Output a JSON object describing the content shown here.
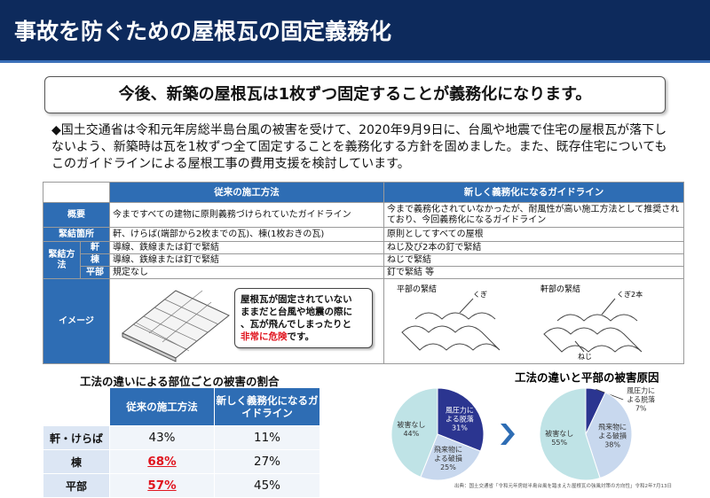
{
  "header": {
    "title": "事故を防ぐための屋根瓦の固定義務化"
  },
  "lead": "今後、新築の屋根瓦は1枚ずつ固定することが義務化になります。",
  "body": "◆国土交通省は令和元年房総半島台風の被害を受けて、2020年9月9日に、台風や地震で住宅の屋根瓦が落下しないよう、新築時は瓦を1枚ずつ全て固定することを義務化する方針を固めました。また、既存住宅についてもこのガイドラインによる屋根工事の費用支援を検討しています。",
  "guideline_table": {
    "headers": [
      "従来の施工方法",
      "新しく義務化になるガイドライン"
    ],
    "rows": [
      {
        "label": "概要",
        "old": "今まですべての建物に原則義務づけられていたガイドライン",
        "new": "今まで義務化されていなかったが、耐風性が高い施工方法として推奨されており、今回義務化になるガイドライン"
      },
      {
        "label": "緊結箇所",
        "old": "軒、けらば(端部から2枚までの瓦)、棟(1枚おきの瓦)",
        "new": "原則としてすべての屋根"
      },
      {
        "label": "緊結方法",
        "sub": [
          {
            "label": "軒",
            "old": "導線、鉄線または釘で緊結",
            "new": "ねじ及び2本の釘で緊結"
          },
          {
            "label": "棟",
            "old": "導線、鉄線または釘で緊結",
            "new": "ねじで緊結"
          },
          {
            "label": "平部",
            "old": "規定なし",
            "new": "釘で緊結 等"
          }
        ]
      },
      {
        "label": "イメージ",
        "callout": [
          "屋根瓦が固定されていない",
          "ままだと台風や地震の際に",
          "、瓦が飛んでしまったりと"
        ],
        "callout_emphasis": "非常に危険",
        "callout_end": "です。",
        "diagram_labels": [
          "平部の緊結",
          "軒部の緊結",
          "くぎ",
          "くぎ2本",
          "ねじ"
        ]
      }
    ]
  },
  "damage_table": {
    "title": "工法の違いによる部位ごとの被害の割合",
    "headers": [
      "従来の施工方法",
      "新しく義務化になるガイドライン"
    ],
    "rows": [
      {
        "label": "軒・けらば",
        "values": [
          "43%",
          "11%"
        ],
        "emphasis": [
          false,
          false
        ]
      },
      {
        "label": "棟",
        "values": [
          "68%",
          "27%"
        ],
        "emphasis": [
          true,
          false
        ]
      },
      {
        "label": "平部",
        "values": [
          "57%",
          "45%"
        ],
        "emphasis": [
          true,
          false
        ]
      }
    ]
  },
  "pies": {
    "title": "工法の違いと平部の被害原因",
    "charts": [
      {
        "slices": [
          {
            "name": [
              "風圧力に",
              "よる脱落"
            ],
            "value": 31,
            "value_label": "31%",
            "color": "#2b3590"
          },
          {
            "name": [
              "飛来物に",
              "よる破損"
            ],
            "value": 25,
            "value_label": "25%",
            "color": "#c8d8ee"
          },
          {
            "name": [
              "被害なし"
            ],
            "value": 44,
            "value_label": "44%",
            "color": "#bfe3e6"
          }
        ]
      },
      {
        "slices": [
          {
            "name": [
              "風圧力に",
              "よる脱落"
            ],
            "value": 7,
            "value_label": "7%",
            "color": "#2b3590"
          },
          {
            "name": [
              "飛来物に",
              "よる破損"
            ],
            "value": 38,
            "value_label": "38%",
            "color": "#c8d8ee"
          },
          {
            "name": [
              "被害なし"
            ],
            "value": 55,
            "value_label": "55%",
            "color": "#bfe3e6"
          }
        ]
      }
    ],
    "source": "出典：国土交通省「令和元年房総半島台風を踏まえた屋根瓦の強風対策の方向性」令和2年7月13日"
  }
}
